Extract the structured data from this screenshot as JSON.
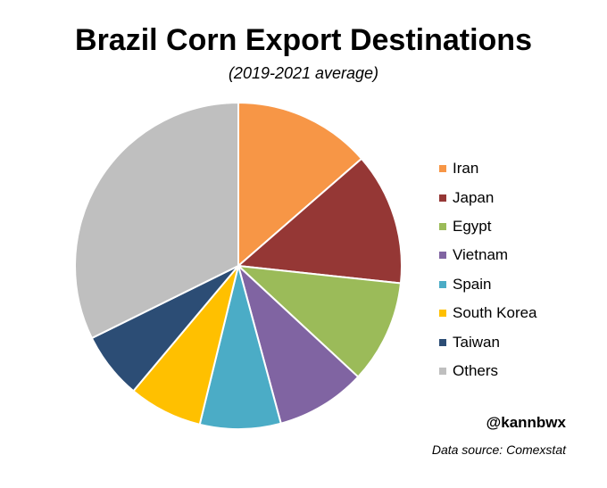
{
  "chart_data": {
    "type": "pie",
    "title": "Brazil Corn Export Destinations",
    "subtitle": "(2019-2021 average)",
    "categories": [
      "Iran",
      "Japan",
      "Egypt",
      "Vietnam",
      "Spain",
      "South Korea",
      "Taiwan",
      "Others"
    ],
    "values": [
      13.6,
      13.1,
      10.2,
      8.9,
      8.0,
      7.3,
      6.6,
      32.3
    ],
    "colors": [
      "#F79646",
      "#953735",
      "#9BBB59",
      "#8064A2",
      "#4BACC6",
      "#FFC000",
      "#2C4D75",
      "#BFBFBF"
    ],
    "legend_position": "right"
  },
  "footer": {
    "handle": "@kannbwx",
    "source": "Data source: Comexstat"
  }
}
